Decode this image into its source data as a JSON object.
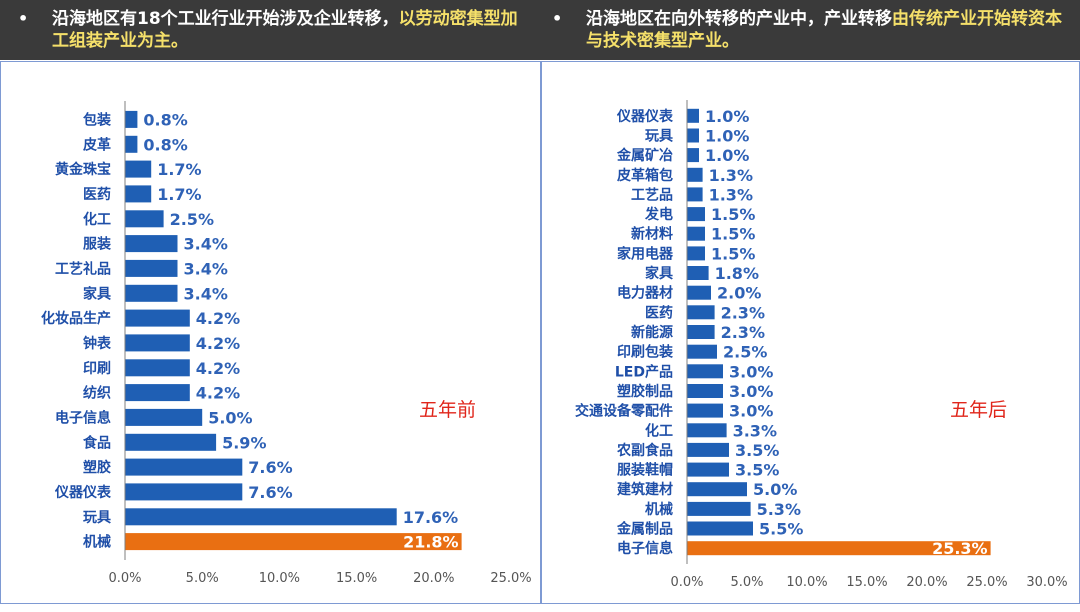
{
  "banner": {
    "left": {
      "bullet": "•",
      "text": "沿海地区有18个工业行业开始涉及企业转移，",
      "highlight": "以劳动密集型加工组装产业为主。"
    },
    "right": {
      "bullet": "•",
      "text": "沿海地区在向外转移的产业中，产业转移",
      "highlight": "由传统产业开始转资本与技术密集型产业。"
    }
  },
  "colors": {
    "bar": "#1f5fb4",
    "bar_highlight": "#e96f12",
    "axis": "#7f7f7f"
  },
  "chart_data": [
    {
      "type": "bar",
      "orientation": "horizontal",
      "annotation": "五年前",
      "categories": [
        "包装",
        "皮革",
        "黄金珠宝",
        "医药",
        "化工",
        "服装",
        "工艺礼品",
        "家具",
        "化妆品生产",
        "钟表",
        "印刷",
        "纺织",
        "电子信息",
        "食品",
        "塑胶",
        "仪器仪表",
        "玩具",
        "机械"
      ],
      "values": [
        0.8,
        0.8,
        1.7,
        1.7,
        2.5,
        3.4,
        3.4,
        3.4,
        4.2,
        4.2,
        4.2,
        4.2,
        5.0,
        5.9,
        7.6,
        7.6,
        17.6,
        21.8
      ],
      "value_labels": [
        "0.8%",
        "0.8%",
        "1.7%",
        "1.7%",
        "2.5%",
        "3.4%",
        "3.4%",
        "3.4%",
        "4.2%",
        "4.2%",
        "4.2%",
        "4.2%",
        "5.0%",
        "5.9%",
        "7.6%",
        "7.6%",
        "17.6%",
        "21.8%"
      ],
      "highlight_index": 17,
      "xlim": [
        0,
        25
      ],
      "ticks": [
        0,
        5,
        10,
        15,
        20,
        25
      ],
      "tick_labels": [
        "0.0%",
        "5.0%",
        "10.0%",
        "15.0%",
        "20.0%",
        "25.0%"
      ]
    },
    {
      "type": "bar",
      "orientation": "horizontal",
      "annotation": "五年后",
      "categories": [
        "仪器仪表",
        "玩具",
        "金属矿冶",
        "皮革箱包",
        "工艺品",
        "发电",
        "新材料",
        "家用电器",
        "家具",
        "电力器材",
        "医药",
        "新能源",
        "印刷包装",
        "LED产品",
        "塑胶制品",
        "交通设备零配件",
        "化工",
        "农副食品",
        "服装鞋帽",
        "建筑建材",
        "机械",
        "金属制品",
        "电子信息"
      ],
      "values": [
        1.0,
        1.0,
        1.0,
        1.3,
        1.3,
        1.5,
        1.5,
        1.5,
        1.8,
        2.0,
        2.3,
        2.3,
        2.5,
        3.0,
        3.0,
        3.0,
        3.3,
        3.5,
        3.5,
        5.0,
        5.3,
        5.5,
        25.3
      ],
      "value_labels": [
        "1.0%",
        "1.0%",
        "1.0%",
        "1.3%",
        "1.3%",
        "1.5%",
        "1.5%",
        "1.5%",
        "1.8%",
        "2.0%",
        "2.3%",
        "2.3%",
        "2.5%",
        "3.0%",
        "3.0%",
        "3.0%",
        "3.3%",
        "3.5%",
        "3.5%",
        "5.0%",
        "5.3%",
        "5.5%",
        "25.3%"
      ],
      "highlight_index": 22,
      "xlim": [
        0,
        30
      ],
      "ticks": [
        0,
        5,
        10,
        15,
        20,
        25,
        30
      ],
      "tick_labels": [
        "0.0%",
        "5.0%",
        "10.0%",
        "15.0%",
        "20.0%",
        "25.0%",
        "30.0%"
      ]
    }
  ]
}
